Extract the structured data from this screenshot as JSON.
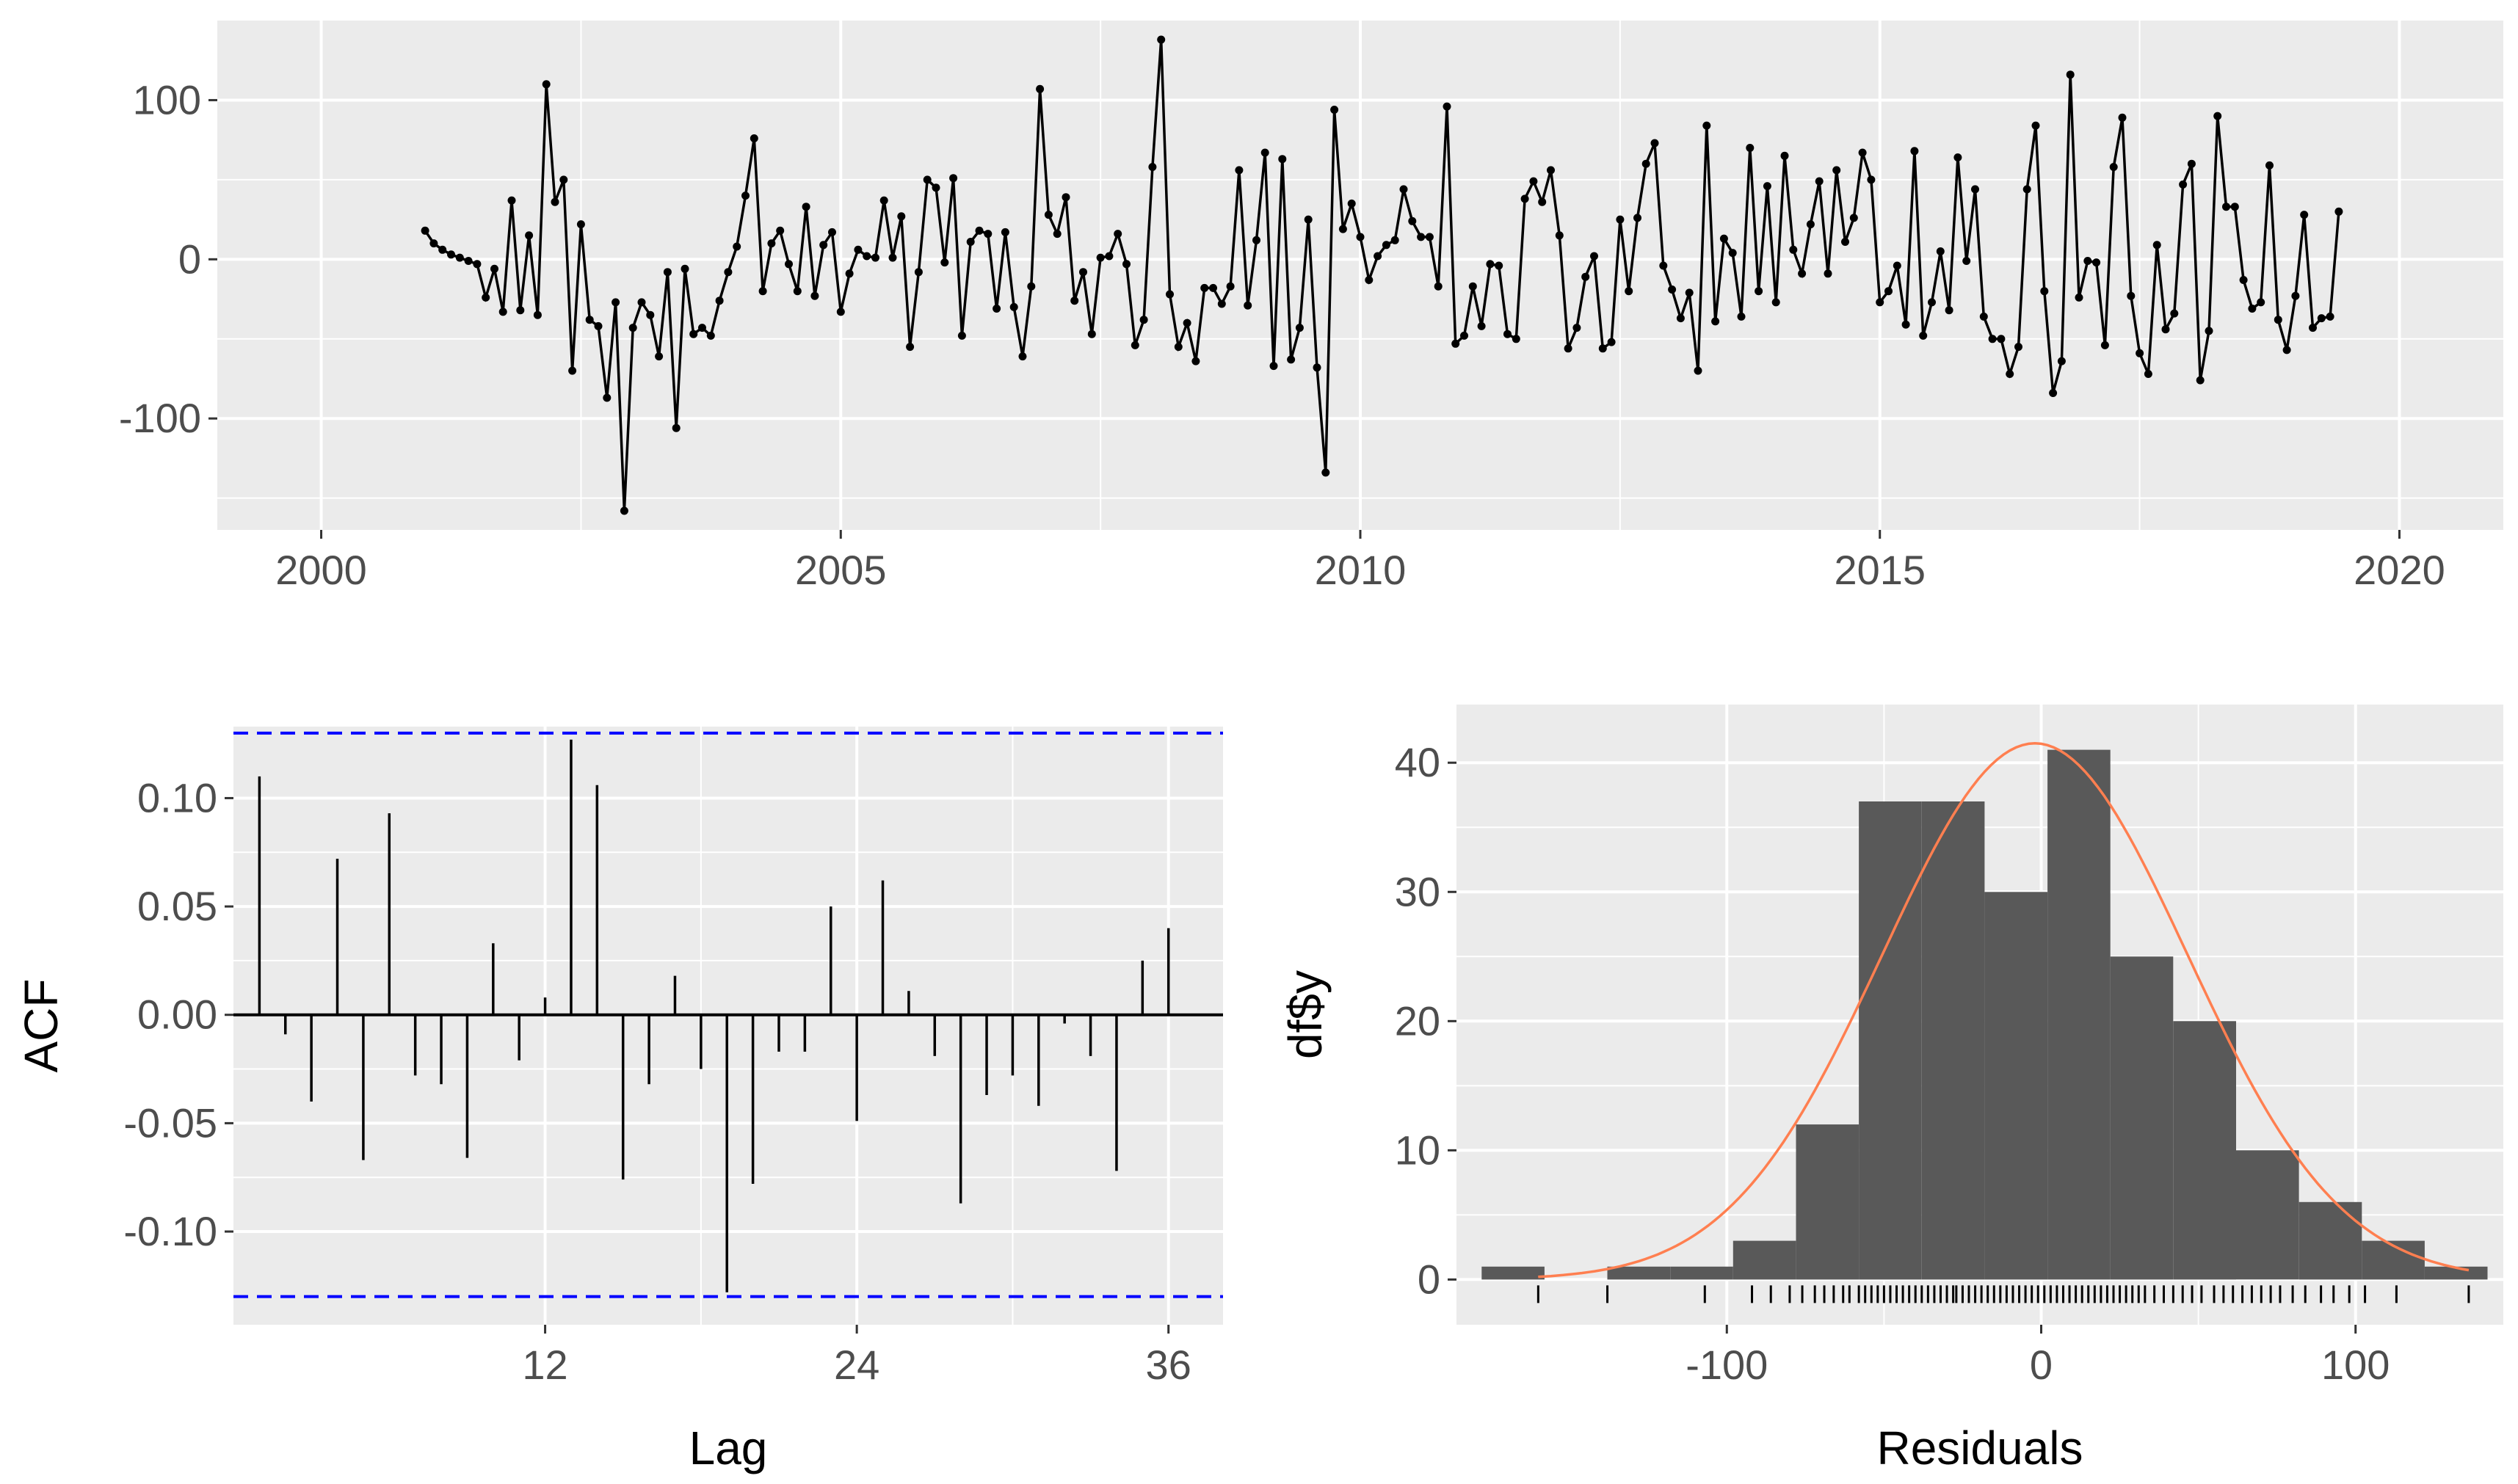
{
  "colors": {
    "panel_bg": "#ebebeb",
    "grid": "#ffffff",
    "line": "#000000",
    "bars": "#595959",
    "ci_line": "#0000ff",
    "density_curve": "#ff7f50"
  },
  "chart_data": [
    {
      "type": "line",
      "title": "",
      "xlabel": "",
      "ylabel": "",
      "xlim": [
        1999.0,
        2021.0
      ],
      "ylim": [
        -170,
        150
      ],
      "x_ticks": [
        2000,
        2005,
        2010,
        2015,
        2020
      ],
      "x_tick_labels": [
        "2000",
        "2005",
        "2010",
        "2015",
        "2020"
      ],
      "y_ticks": [
        -100,
        0,
        100
      ],
      "y_tick_labels": [
        "-100",
        "0",
        "100"
      ],
      "grid": true,
      "start": 2001.0,
      "step": 0.0833333,
      "values": [
        18,
        10,
        6,
        3,
        1,
        -1,
        -3,
        -24,
        -6,
        -33,
        37,
        -32,
        15,
        -35,
        110,
        36,
        50,
        -70,
        22,
        -38,
        -42,
        -87,
        -27,
        -158,
        -43,
        -27,
        -35,
        -61,
        -8,
        -106,
        -6,
        -47,
        -43,
        -48,
        -26,
        -8,
        8,
        40,
        76,
        -20,
        10,
        18,
        -3,
        -20,
        33,
        -23,
        9,
        17,
        -33,
        -9,
        6,
        2,
        1,
        37,
        1,
        27,
        -55,
        -8,
        50,
        45,
        -2,
        51,
        -48,
        11,
        18,
        16,
        -31,
        17,
        -30,
        -61,
        -17,
        107,
        28,
        16,
        39,
        -26,
        -8,
        -47,
        1,
        2,
        16,
        -3,
        -54,
        -38,
        58,
        138,
        -22,
        -55,
        -40,
        -64,
        -18,
        -18,
        -28,
        -17,
        56,
        -29,
        12,
        67,
        -67,
        63,
        -63,
        -43,
        25,
        -68,
        -134,
        94,
        19,
        35,
        14,
        -13,
        2,
        9,
        12,
        44,
        24,
        14,
        14,
        -17,
        96,
        -53,
        -48,
        -17,
        -42,
        -3,
        -4,
        -47,
        -50,
        38,
        49,
        36,
        56,
        15,
        -56,
        -43,
        -11,
        2,
        -56,
        -52,
        25,
        -20,
        26,
        60,
        73,
        -4,
        -19,
        -37,
        -21,
        -70,
        84,
        -39,
        13,
        4,
        -36,
        70,
        -20,
        46,
        -27,
        65,
        6,
        -9,
        22,
        49,
        -9,
        56,
        11,
        26,
        67,
        50,
        -27,
        -20,
        -4,
        -41,
        68,
        -48,
        -27,
        5,
        -32,
        64,
        -1,
        44,
        -36,
        -50,
        -50,
        -72,
        -55,
        44,
        84,
        -20,
        -84,
        -64,
        116,
        -24,
        -1,
        -2,
        -54,
        58,
        89,
        -23,
        -59,
        -72,
        9,
        -44,
        -34,
        47,
        60,
        -76,
        -45,
        90,
        33,
        33,
        -13,
        -31,
        -27,
        59,
        -38,
        -57,
        -23,
        28,
        -43,
        -37,
        -36,
        30
      ],
      "series": [
        {
          "values_ref": "values"
        }
      ]
    },
    {
      "type": "bar",
      "title": "",
      "xlabel": "Lag",
      "ylabel": "ACF",
      "xlim": [
        0,
        38.1
      ],
      "ylim": [
        -0.143,
        0.133
      ],
      "x_ticks": [
        12,
        24,
        36
      ],
      "x_tick_labels": [
        "12",
        "24",
        "36"
      ],
      "y_ticks": [
        -0.1,
        -0.05,
        0.0,
        0.05,
        0.1
      ],
      "y_tick_labels": [
        "-0.10",
        "-0.05",
        "0.00",
        "0.05",
        "0.10"
      ],
      "grid": true,
      "ci_bounds": [
        -0.13,
        0.13
      ],
      "lags": [
        1,
        2,
        3,
        4,
        5,
        6,
        7,
        8,
        9,
        10,
        11,
        12,
        13,
        14,
        15,
        16,
        17,
        18,
        19,
        20,
        21,
        22,
        23,
        24,
        25,
        26,
        27,
        28,
        29,
        30,
        31,
        32,
        33,
        34,
        35,
        36
      ],
      "values": [
        0.11,
        -0.009,
        -0.04,
        0.072,
        -0.067,
        0.093,
        -0.028,
        -0.032,
        -0.066,
        0.033,
        -0.021,
        0.008,
        0.127,
        0.106,
        -0.076,
        -0.032,
        0.018,
        -0.025,
        -0.128,
        -0.078,
        -0.017,
        -0.017,
        0.05,
        -0.049,
        0.062,
        0.011,
        -0.019,
        -0.087,
        -0.037,
        -0.028,
        -0.042,
        -0.004,
        -0.019,
        -0.072,
        0.025,
        0.04
      ]
    },
    {
      "type": "bar",
      "title": "",
      "xlabel": "Residuals",
      "ylabel": "df$y",
      "xlim": [
        -186,
        147
      ],
      "ylim": [
        -3.5,
        44.5
      ],
      "x_ticks": [
        -100,
        0,
        100
      ],
      "x_tick_labels": [
        "-100",
        "0",
        "100"
      ],
      "y_ticks": [
        0,
        10,
        20,
        30,
        40
      ],
      "y_tick_labels": [
        "0",
        "10",
        "20",
        "30",
        "40"
      ],
      "grid": true,
      "bin_width": 20,
      "bin_centers": [
        -168,
        -148,
        -128,
        -108,
        -88,
        -68,
        -48,
        -28,
        -8,
        12,
        32,
        52,
        72,
        92,
        112,
        132
      ],
      "counts": [
        1,
        0,
        1,
        1,
        3,
        12,
        37,
        37,
        30,
        41,
        25,
        20,
        10,
        6,
        3,
        1
      ],
      "density_curve": {
        "mean": -2,
        "sd": 48.5,
        "peak": 41.5
      },
      "rug": [
        -160,
        -138,
        -107,
        -92,
        -86,
        -80,
        -76,
        -72,
        -69,
        -66,
        -63,
        -61,
        -58,
        -56,
        -54,
        -52,
        -50,
        -48,
        -46,
        -44,
        -42,
        -40,
        -38,
        -36,
        -34,
        -32,
        -30,
        -28,
        -27,
        -25,
        -23,
        -21,
        -19,
        -17,
        -15,
        -13,
        -11,
        -9,
        -7,
        -5,
        -3,
        -1,
        1,
        3,
        5,
        7,
        9,
        11,
        13,
        15,
        17,
        19,
        21,
        23,
        25,
        27,
        29,
        31,
        33,
        36,
        39,
        42,
        45,
        48,
        51,
        55,
        58,
        61,
        64,
        67,
        70,
        73,
        76,
        80,
        84,
        89,
        93,
        98,
        103,
        113,
        136
      ]
    }
  ]
}
